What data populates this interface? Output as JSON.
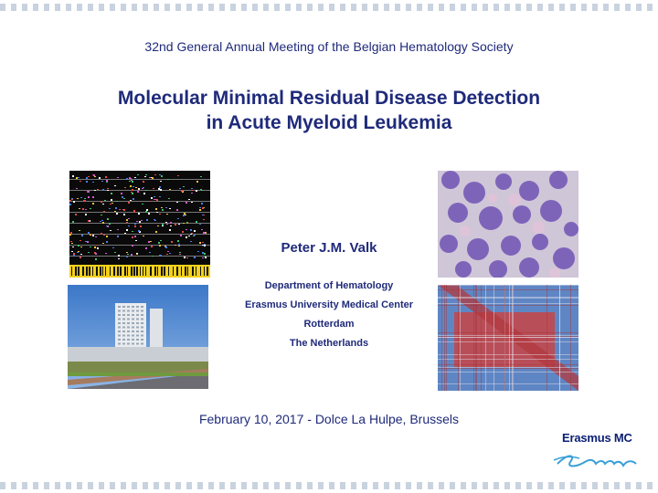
{
  "conference": "32nd General Annual Meeting of the Belgian Hematology Society",
  "title": {
    "line1": "Molecular Minimal Residual Disease Detection",
    "line2": "in Acute Myeloid Leukemia"
  },
  "presenter": "Peter J.M. Valk",
  "affiliation": {
    "department": "Department of Hematology",
    "institution": "Erasmus University Medical Center",
    "city": "Rotterdam",
    "country": "The Netherlands"
  },
  "date_venue": "February 10, 2017 - Dolce La Hulpe, Brussels",
  "logo": {
    "name": "Erasmus MC",
    "signature": "Erasmus"
  },
  "colors": {
    "title_text": "#1f2a7a",
    "logo_blue": "#0c2074",
    "logo_swoosh": "#3aa0d8",
    "border_dots": "#c9d3e0"
  }
}
